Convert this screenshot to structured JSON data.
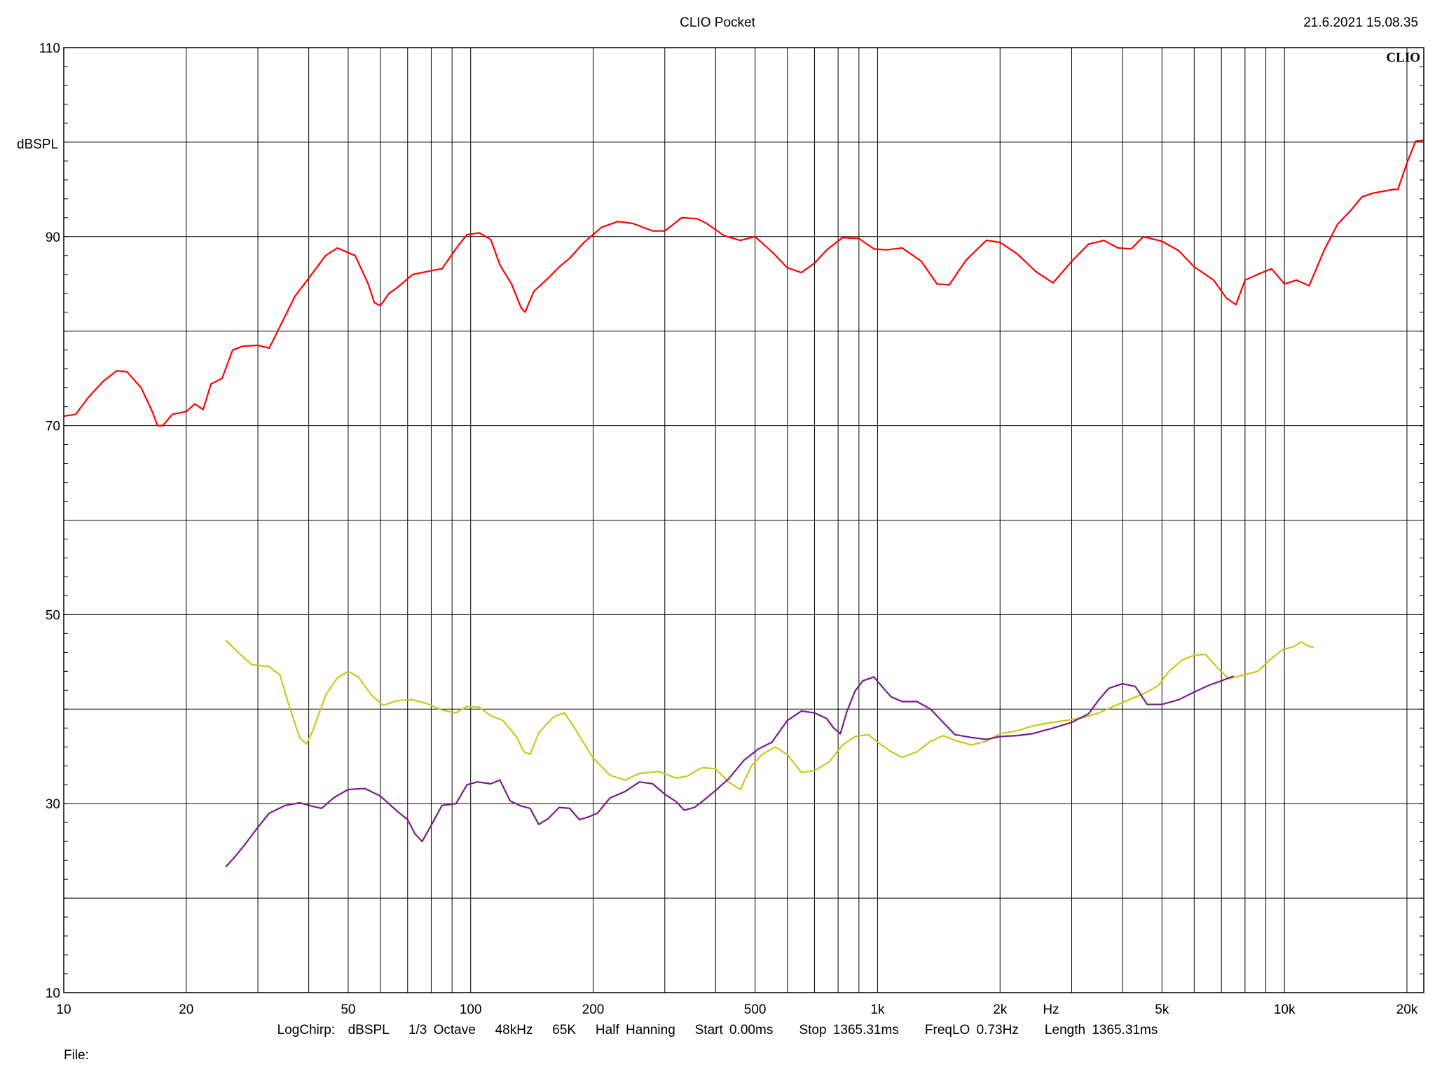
{
  "header": {
    "title": "CLIO Pocket",
    "timestamp": "21.6.2021 15.08.35",
    "brand": "CLIO"
  },
  "footer": {
    "settings": "LogChirp:  dBSPL   1/3 Octave   48kHz   65K   Half Hanning   Start 0.00ms    Stop 1365.31ms    FreqLO 0.73Hz    Length 1365.31ms",
    "file_label": "File:"
  },
  "chart_data": {
    "type": "line",
    "title": "CLIO Pocket",
    "xlabel": "Hz",
    "ylabel": "dBSPL",
    "x_scale": "log",
    "xlim": [
      10,
      22000
    ],
    "ylim": [
      10,
      110
    ],
    "grid": true,
    "x_ticks": [
      {
        "value": 10,
        "label": "10"
      },
      {
        "value": 20,
        "label": "20"
      },
      {
        "value": 50,
        "label": "50"
      },
      {
        "value": 100,
        "label": "100"
      },
      {
        "value": 200,
        "label": "200"
      },
      {
        "value": 500,
        "label": "500"
      },
      {
        "value": 1000,
        "label": "1k"
      },
      {
        "value": 2000,
        "label": "2k"
      },
      {
        "value": 5000,
        "label": "5k"
      },
      {
        "value": 10000,
        "label": "10k"
      },
      {
        "value": 20000,
        "label": "20k"
      }
    ],
    "y_ticks": [
      {
        "value": 10,
        "label": "10"
      },
      {
        "value": 30,
        "label": "30"
      },
      {
        "value": 50,
        "label": "50"
      },
      {
        "value": 70,
        "label": "70"
      },
      {
        "value": 90,
        "label": "90"
      },
      {
        "value": 110,
        "label": "110"
      }
    ],
    "colors": {
      "red": "#ff0000",
      "yellow": "#c8c81e",
      "purple": "#7a1a8c",
      "grid": "#000000"
    },
    "series": [
      {
        "color": "#ff0000",
        "points": [
          [
            10,
            71
          ],
          [
            10.7,
            71.2
          ],
          [
            11.5,
            73
          ],
          [
            12.5,
            74.7
          ],
          [
            13.5,
            75.8
          ],
          [
            14.3,
            75.7
          ],
          [
            15.5,
            74
          ],
          [
            16.5,
            71.5
          ],
          [
            17,
            70
          ],
          [
            17.5,
            70
          ],
          [
            18.5,
            71.2
          ],
          [
            20,
            71.5
          ],
          [
            21,
            72.3
          ],
          [
            22,
            71.7
          ],
          [
            23,
            74.4
          ],
          [
            24.5,
            75
          ],
          [
            26,
            78
          ],
          [
            27.5,
            78.4
          ],
          [
            30,
            78.5
          ],
          [
            32,
            78.2
          ],
          [
            34,
            80.5
          ],
          [
            37,
            83.7
          ],
          [
            40,
            85.6
          ],
          [
            44,
            88
          ],
          [
            47,
            88.8
          ],
          [
            52,
            88
          ],
          [
            56,
            85
          ],
          [
            58,
            83
          ],
          [
            60,
            82.7
          ],
          [
            63,
            84
          ],
          [
            66,
            84.6
          ],
          [
            72,
            86
          ],
          [
            80,
            86.4
          ],
          [
            85,
            86.6
          ],
          [
            93,
            89
          ],
          [
            98,
            90.2
          ],
          [
            105,
            90.4
          ],
          [
            112,
            89.7
          ],
          [
            118,
            87
          ],
          [
            126,
            85
          ],
          [
            133,
            82.5
          ],
          [
            136,
            82
          ],
          [
            143,
            84.2
          ],
          [
            155,
            85.6
          ],
          [
            165,
            86.8
          ],
          [
            175,
            87.7
          ],
          [
            190,
            89.4
          ],
          [
            210,
            91
          ],
          [
            230,
            91.6
          ],
          [
            250,
            91.4
          ],
          [
            280,
            90.6
          ],
          [
            300,
            90.6
          ],
          [
            330,
            92
          ],
          [
            360,
            91.9
          ],
          [
            380,
            91.4
          ],
          [
            420,
            90.1
          ],
          [
            460,
            89.6
          ],
          [
            500,
            90
          ],
          [
            550,
            88.4
          ],
          [
            600,
            86.7
          ],
          [
            650,
            86.2
          ],
          [
            700,
            87.2
          ],
          [
            750,
            88.6
          ],
          [
            820,
            89.9
          ],
          [
            900,
            89.8
          ],
          [
            980,
            88.7
          ],
          [
            1050,
            88.6
          ],
          [
            1150,
            88.8
          ],
          [
            1280,
            87.4
          ],
          [
            1400,
            85
          ],
          [
            1500,
            84.9
          ],
          [
            1650,
            87.5
          ],
          [
            1850,
            89.6
          ],
          [
            2000,
            89.4
          ],
          [
            2200,
            88.2
          ],
          [
            2450,
            86.3
          ],
          [
            2700,
            85.1
          ],
          [
            3000,
            87.4
          ],
          [
            3300,
            89.2
          ],
          [
            3600,
            89.6
          ],
          [
            3900,
            88.8
          ],
          [
            4200,
            88.7
          ],
          [
            4500,
            90
          ],
          [
            5000,
            89.5
          ],
          [
            5500,
            88.5
          ],
          [
            6000,
            86.8
          ],
          [
            6700,
            85.4
          ],
          [
            7200,
            83.5
          ],
          [
            7600,
            82.8
          ],
          [
            8000,
            85.4
          ],
          [
            8700,
            86.1
          ],
          [
            9300,
            86.6
          ],
          [
            10000,
            85
          ],
          [
            10700,
            85.4
          ],
          [
            11500,
            84.8
          ],
          [
            12500,
            88.5
          ],
          [
            13500,
            91.3
          ],
          [
            14500,
            92.7
          ],
          [
            15500,
            94.2
          ],
          [
            16500,
            94.6
          ],
          [
            17500,
            94.8
          ],
          [
            18500,
            95
          ],
          [
            19000,
            95
          ],
          [
            20000,
            97.8
          ],
          [
            21000,
            100.1
          ],
          [
            22000,
            100.2
          ]
        ]
      },
      {
        "color": "#c8c81e",
        "points": [
          [
            25,
            47.3
          ],
          [
            27,
            45.9
          ],
          [
            29,
            44.7
          ],
          [
            32,
            44.5
          ],
          [
            34,
            43.6
          ],
          [
            36,
            40
          ],
          [
            38,
            37
          ],
          [
            39.5,
            36.3
          ],
          [
            41,
            37.8
          ],
          [
            44,
            41.5
          ],
          [
            47,
            43.3
          ],
          [
            50,
            44
          ],
          [
            53,
            43.4
          ],
          [
            57,
            41.5
          ],
          [
            61,
            40.4
          ],
          [
            66,
            40.9
          ],
          [
            72,
            41
          ],
          [
            78,
            40.6
          ],
          [
            85,
            39.9
          ],
          [
            92,
            39.6
          ],
          [
            98,
            40.3
          ],
          [
            105,
            40.2
          ],
          [
            112,
            39.3
          ],
          [
            120,
            38.8
          ],
          [
            130,
            37
          ],
          [
            135,
            35.5
          ],
          [
            140,
            35.2
          ],
          [
            147,
            37.5
          ],
          [
            160,
            39.2
          ],
          [
            170,
            39.6
          ],
          [
            180,
            38
          ],
          [
            200,
            34.8
          ],
          [
            220,
            33
          ],
          [
            240,
            32.5
          ],
          [
            260,
            33.2
          ],
          [
            290,
            33.4
          ],
          [
            320,
            32.7
          ],
          [
            340,
            32.9
          ],
          [
            370,
            33.8
          ],
          [
            400,
            33.7
          ],
          [
            430,
            32.3
          ],
          [
            460,
            31.5
          ],
          [
            490,
            34
          ],
          [
            520,
            35.2
          ],
          [
            560,
            36
          ],
          [
            600,
            35.2
          ],
          [
            650,
            33.3
          ],
          [
            700,
            33.5
          ],
          [
            760,
            34.4
          ],
          [
            820,
            36.2
          ],
          [
            880,
            37.1
          ],
          [
            950,
            37.3
          ],
          [
            1000,
            36.5
          ],
          [
            1080,
            35.5
          ],
          [
            1150,
            34.9
          ],
          [
            1250,
            35.5
          ],
          [
            1350,
            36.6
          ],
          [
            1450,
            37.2
          ],
          [
            1550,
            36.7
          ],
          [
            1700,
            36.2
          ],
          [
            1850,
            36.6
          ],
          [
            2000,
            37.4
          ],
          [
            2200,
            37.7
          ],
          [
            2400,
            38.2
          ],
          [
            2600,
            38.5
          ],
          [
            2900,
            38.8
          ],
          [
            3200,
            39.1
          ],
          [
            3500,
            39.6
          ],
          [
            3800,
            40.3
          ],
          [
            4100,
            40.9
          ],
          [
            4500,
            41.6
          ],
          [
            4900,
            42.5
          ],
          [
            5200,
            44
          ],
          [
            5600,
            45.2
          ],
          [
            6000,
            45.7
          ],
          [
            6400,
            45.8
          ],
          [
            6800,
            44.5
          ],
          [
            7300,
            43.2
          ],
          [
            7900,
            43.6
          ],
          [
            8600,
            44
          ],
          [
            9200,
            45.2
          ],
          [
            9900,
            46.3
          ],
          [
            10500,
            46.6
          ],
          [
            11000,
            47.1
          ],
          [
            11400,
            46.7
          ],
          [
            11800,
            46.5
          ]
        ]
      },
      {
        "color": "#7a1a8c",
        "points": [
          [
            25,
            23.3
          ],
          [
            26.5,
            24.5
          ],
          [
            28,
            25.8
          ],
          [
            30,
            27.5
          ],
          [
            32,
            29
          ],
          [
            35,
            29.8
          ],
          [
            38,
            30.1
          ],
          [
            41,
            29.7
          ],
          [
            43,
            29.5
          ],
          [
            46,
            30.6
          ],
          [
            50,
            31.5
          ],
          [
            55,
            31.6
          ],
          [
            60,
            30.8
          ],
          [
            66,
            29.2
          ],
          [
            70,
            28.3
          ],
          [
            73,
            26.8
          ],
          [
            76,
            26
          ],
          [
            80,
            27.7
          ],
          [
            85,
            29.8
          ],
          [
            92,
            30
          ],
          [
            98,
            32
          ],
          [
            104,
            32.3
          ],
          [
            112,
            32.1
          ],
          [
            118,
            32.5
          ],
          [
            125,
            30.3
          ],
          [
            132,
            29.8
          ],
          [
            140,
            29.5
          ],
          [
            147,
            27.8
          ],
          [
            155,
            28.4
          ],
          [
            165,
            29.6
          ],
          [
            175,
            29.5
          ],
          [
            185,
            28.3
          ],
          [
            195,
            28.6
          ],
          [
            205,
            29
          ],
          [
            220,
            30.6
          ],
          [
            240,
            31.3
          ],
          [
            260,
            32.3
          ],
          [
            280,
            32.1
          ],
          [
            300,
            31
          ],
          [
            320,
            30.2
          ],
          [
            335,
            29.3
          ],
          [
            355,
            29.6
          ],
          [
            375,
            30.4
          ],
          [
            400,
            31.4
          ],
          [
            430,
            32.6
          ],
          [
            470,
            34.6
          ],
          [
            510,
            35.8
          ],
          [
            550,
            36.5
          ],
          [
            600,
            38.8
          ],
          [
            650,
            39.8
          ],
          [
            700,
            39.6
          ],
          [
            750,
            39
          ],
          [
            780,
            38
          ],
          [
            810,
            37.4
          ],
          [
            840,
            39.7
          ],
          [
            880,
            41.9
          ],
          [
            920,
            43
          ],
          [
            980,
            43.4
          ],
          [
            1030,
            42.3
          ],
          [
            1080,
            41.3
          ],
          [
            1150,
            40.8
          ],
          [
            1250,
            40.8
          ],
          [
            1350,
            40
          ],
          [
            1450,
            38.6
          ],
          [
            1550,
            37.3
          ],
          [
            1700,
            37
          ],
          [
            1850,
            36.8
          ],
          [
            2000,
            37.1
          ],
          [
            2200,
            37.2
          ],
          [
            2400,
            37.4
          ],
          [
            2700,
            38
          ],
          [
            3000,
            38.6
          ],
          [
            3300,
            39.5
          ],
          [
            3500,
            41
          ],
          [
            3700,
            42.2
          ],
          [
            4000,
            42.7
          ],
          [
            4300,
            42.4
          ],
          [
            4600,
            40.5
          ],
          [
            5000,
            40.5
          ],
          [
            5500,
            41
          ],
          [
            6000,
            41.8
          ],
          [
            6500,
            42.5
          ],
          [
            7000,
            43
          ],
          [
            7500,
            43.5
          ]
        ]
      }
    ]
  }
}
